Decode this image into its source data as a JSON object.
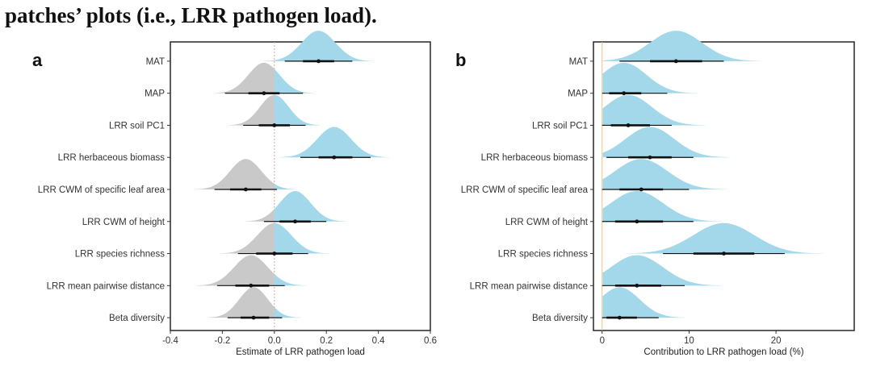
{
  "caption": "patches’ plots (i.e., LRR pathogen load).",
  "colors": {
    "positive": "#a3d8ea",
    "negative": "#c9c9c9",
    "interval": "#111111",
    "zero_a": "#e0a0a0",
    "zero_b": "#e8b878"
  },
  "chart_data": [
    {
      "panel_label": "a",
      "type": "halfeye",
      "xlabel": "Estimate of LRR pathogen load",
      "xlim": [
        -0.4,
        0.6
      ],
      "xticks": [
        "-0.4",
        "-0.2",
        "0.0",
        "0.2",
        "0.4",
        "0.6"
      ],
      "xtick_values": [
        -0.4,
        -0.2,
        0.0,
        0.2,
        0.4,
        0.6
      ],
      "categories": [
        "MAT",
        "MAP",
        "LRR soil PC1",
        "LRR herbaceous biomass",
        "LRR CWM of specific leaf area",
        "LRR CWM of height",
        "LRR species richness",
        "LRR mean pairwise distance",
        "Beta diversity"
      ],
      "median": [
        0.17,
        -0.04,
        0.0,
        0.23,
        -0.11,
        0.08,
        0.0,
        -0.09,
        -0.08
      ],
      "sd": [
        0.065,
        0.06,
        0.055,
        0.065,
        0.06,
        0.06,
        0.065,
        0.065,
        0.055
      ],
      "ci66": [
        [
          0.11,
          0.23
        ],
        [
          -0.1,
          0.02
        ],
        [
          -0.06,
          0.06
        ],
        [
          0.17,
          0.3
        ],
        [
          -0.17,
          -0.05
        ],
        [
          0.02,
          0.14
        ],
        [
          -0.07,
          0.07
        ],
        [
          -0.15,
          -0.02
        ],
        [
          -0.13,
          -0.02
        ]
      ],
      "ci95": [
        [
          0.04,
          0.3
        ],
        [
          -0.19,
          0.11
        ],
        [
          -0.12,
          0.12
        ],
        [
          0.1,
          0.37
        ],
        [
          -0.23,
          0.01
        ],
        [
          -0.04,
          0.2
        ],
        [
          -0.14,
          0.13
        ],
        [
          -0.22,
          0.04
        ],
        [
          -0.18,
          0.03
        ]
      ]
    },
    {
      "panel_label": "b",
      "type": "halfeye",
      "xlabel": "Contribution to LRR pathogen load (%)",
      "xlim": [
        -1,
        29
      ],
      "xticks": [
        "0",
        "10",
        "20"
      ],
      "xtick_values": [
        0,
        10,
        20
      ],
      "categories": [
        "MAT",
        "MAP",
        "LRR soil PC1",
        "LRR herbaceous biomass",
        "LRR CWM of specific leaf area",
        "LRR CWM of height",
        "LRR species richness",
        "LRR mean pairwise distance",
        "Beta diversity"
      ],
      "median": [
        8.5,
        2.5,
        3.0,
        5.5,
        4.5,
        4.0,
        14.0,
        4.0,
        2.0
      ],
      "sd": [
        3.0,
        2.6,
        2.7,
        2.8,
        3.0,
        3.0,
        3.5,
        3.0,
        2.3
      ],
      "ci66": [
        [
          5.5,
          11.5
        ],
        [
          0.8,
          4.5
        ],
        [
          1.0,
          5.5
        ],
        [
          3.0,
          8.0
        ],
        [
          2.0,
          7.0
        ],
        [
          1.5,
          7.0
        ],
        [
          10.5,
          17.5
        ],
        [
          1.5,
          6.8
        ],
        [
          0.5,
          4.0
        ]
      ],
      "ci95": [
        [
          2.0,
          14.0
        ],
        [
          0.0,
          7.5
        ],
        [
          0.0,
          8.0
        ],
        [
          0.5,
          10.5
        ],
        [
          0.0,
          10.0
        ],
        [
          0.0,
          10.5
        ],
        [
          7.0,
          21.0
        ],
        [
          0.0,
          9.5
        ],
        [
          0.0,
          6.5
        ]
      ]
    }
  ]
}
